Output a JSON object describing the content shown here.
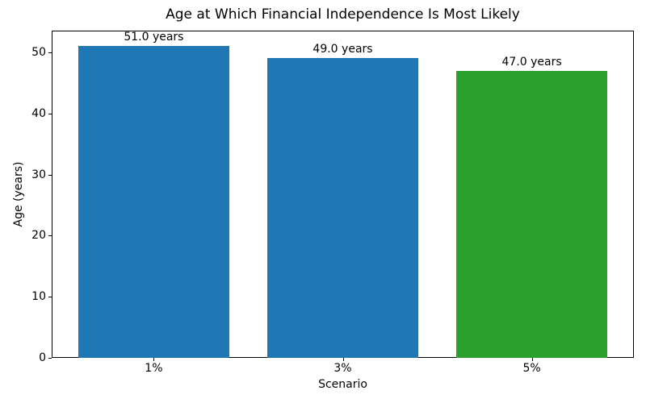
{
  "chart_data": {
    "type": "bar",
    "title": "Age at Which Financial Independence Is Most Likely",
    "xlabel": "Scenario",
    "ylabel": "Age (years)",
    "categories": [
      "1%",
      "3%",
      "5%"
    ],
    "values": [
      51.0,
      49.0,
      47.0
    ],
    "bar_labels": [
      "51.0 years",
      "49.0 years",
      "47.0 years"
    ],
    "bar_colors": [
      "#1f77b4",
      "#1f77b4",
      "#2ca02c"
    ],
    "ylim": [
      0,
      53.55
    ],
    "yticks": [
      0,
      10,
      20,
      30,
      40,
      50
    ],
    "bar_width": 0.8,
    "grid": false,
    "legend_position": "none"
  }
}
